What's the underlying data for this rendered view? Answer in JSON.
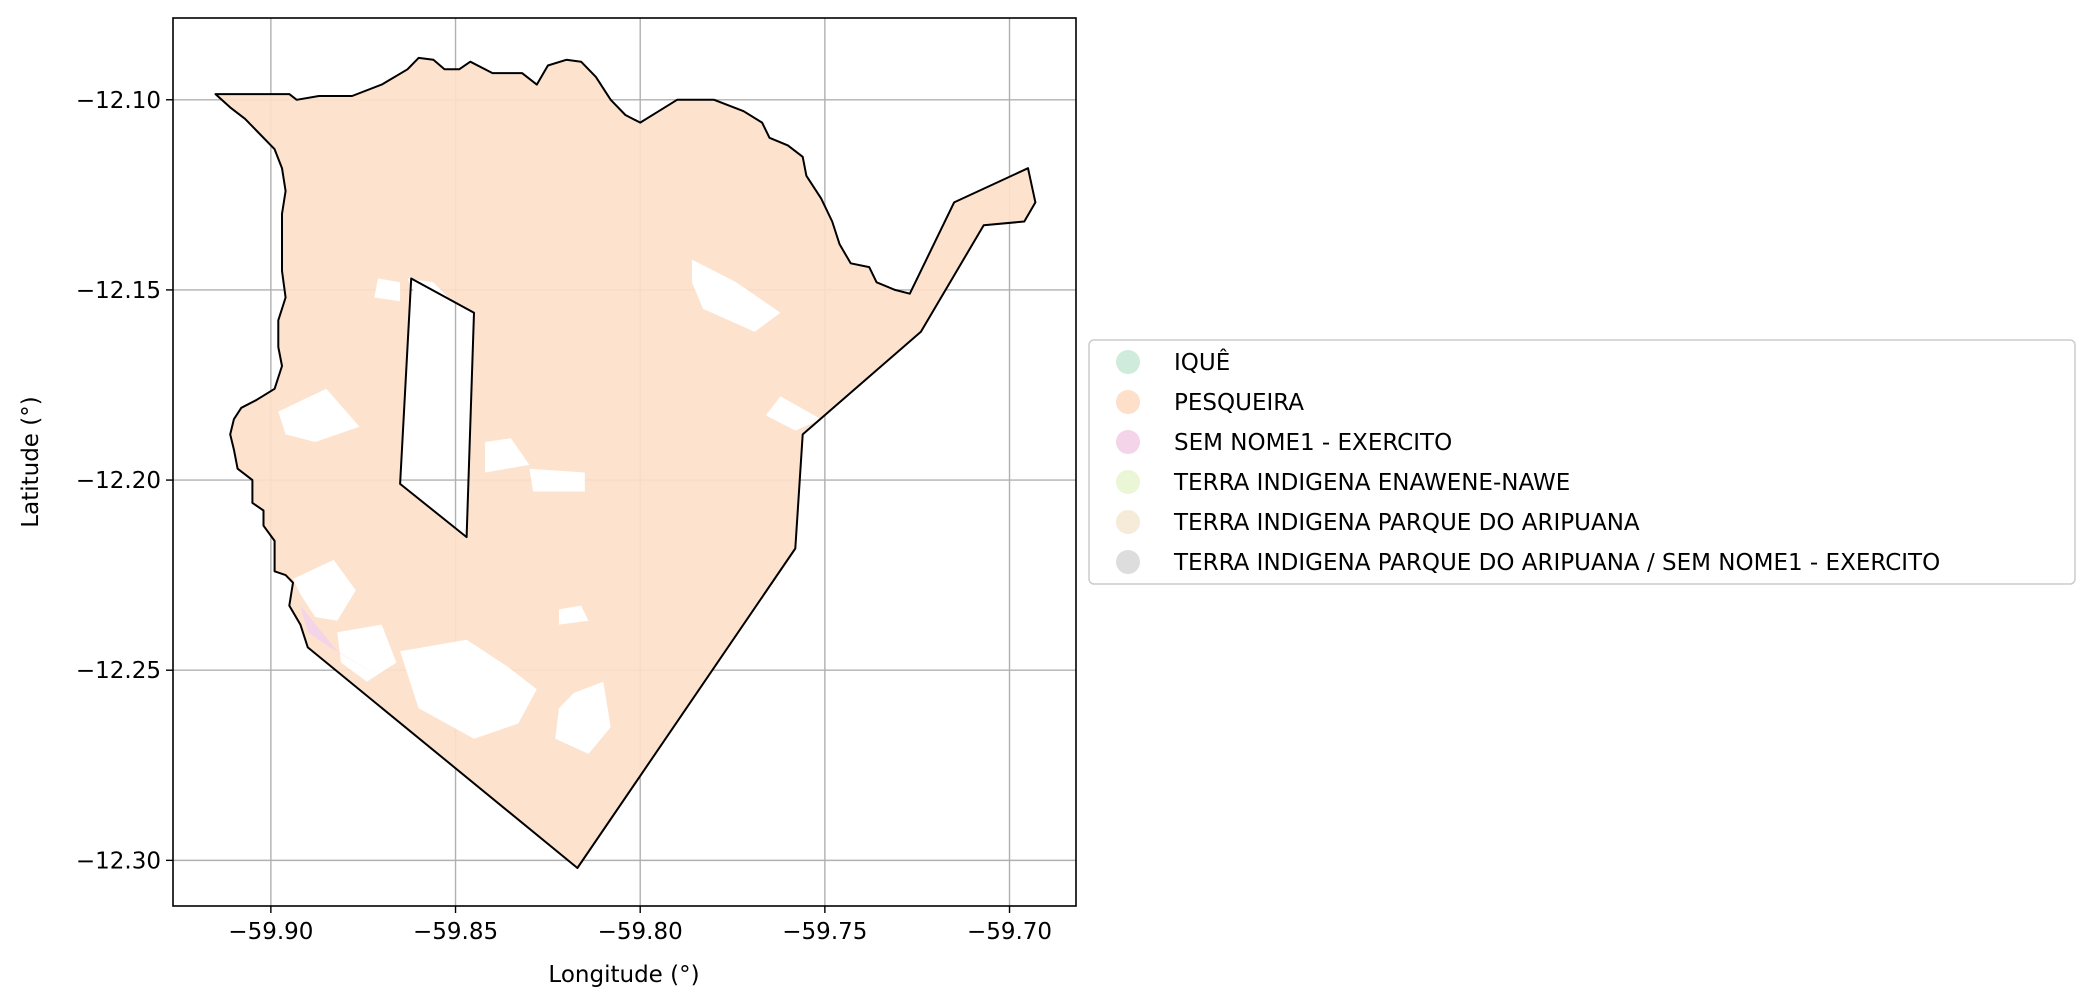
{
  "map": {
    "xlabel": "Longitude (°)",
    "ylabel": "Latitude (°)",
    "xlim": [
      -59.9265,
      -59.682
    ],
    "ylim": [
      -12.312,
      -12.0785
    ],
    "grid": true,
    "xticks": [
      {
        "value": -59.9,
        "label": "−59.90"
      },
      {
        "value": -59.85,
        "label": "−59.85"
      },
      {
        "value": -59.8,
        "label": "−59.80"
      },
      {
        "value": -59.75,
        "label": "−59.75"
      },
      {
        "value": -59.7,
        "label": "−59.70"
      }
    ],
    "yticks": [
      {
        "value": -12.1,
        "label": "−12.10"
      },
      {
        "value": -12.15,
        "label": "−12.15"
      },
      {
        "value": -12.2,
        "label": "−12.20"
      },
      {
        "value": -12.25,
        "label": "−12.25"
      },
      {
        "value": -12.3,
        "label": "−12.30"
      }
    ],
    "fill_color": "#fddfca",
    "boundary_color": "#000000",
    "outer_boundary": [
      [
        -59.915,
        -12.0985
      ],
      [
        -59.905,
        -12.0985
      ],
      [
        -59.895,
        -12.0985
      ],
      [
        -59.893,
        -12.1
      ],
      [
        -59.887,
        -12.099
      ],
      [
        -59.878,
        -12.099
      ],
      [
        -59.87,
        -12.096
      ],
      [
        -59.863,
        -12.092
      ],
      [
        -59.86,
        -12.089
      ],
      [
        -59.856,
        -12.0895
      ],
      [
        -59.853,
        -12.092
      ],
      [
        -59.849,
        -12.092
      ],
      [
        -59.846,
        -12.09
      ],
      [
        -59.84,
        -12.093
      ],
      [
        -59.832,
        -12.093
      ],
      [
        -59.828,
        -12.096
      ],
      [
        -59.825,
        -12.091
      ],
      [
        -59.82,
        -12.0895
      ],
      [
        -59.816,
        -12.09
      ],
      [
        -59.812,
        -12.094
      ],
      [
        -59.808,
        -12.1
      ],
      [
        -59.804,
        -12.104
      ],
      [
        -59.8,
        -12.106
      ],
      [
        -59.795,
        -12.103
      ],
      [
        -59.79,
        -12.1
      ],
      [
        -59.78,
        -12.1
      ],
      [
        -59.772,
        -12.103
      ],
      [
        -59.767,
        -12.106
      ],
      [
        -59.765,
        -12.11
      ],
      [
        -59.76,
        -12.112
      ],
      [
        -59.756,
        -12.115
      ],
      [
        -59.755,
        -12.12
      ],
      [
        -59.751,
        -12.126
      ],
      [
        -59.748,
        -12.132
      ],
      [
        -59.746,
        -12.138
      ],
      [
        -59.743,
        -12.143
      ],
      [
        -59.738,
        -12.144
      ],
      [
        -59.736,
        -12.148
      ],
      [
        -59.731,
        -12.15
      ],
      [
        -59.727,
        -12.151
      ],
      [
        -59.715,
        -12.127
      ],
      [
        -59.695,
        -12.118
      ],
      [
        -59.693,
        -12.127
      ],
      [
        -59.696,
        -12.132
      ],
      [
        -59.707,
        -12.133
      ],
      [
        -59.724,
        -12.161
      ],
      [
        -59.756,
        -12.188
      ],
      [
        -59.758,
        -12.218
      ],
      [
        -59.817,
        -12.302
      ],
      [
        -59.89,
        -12.244
      ],
      [
        -59.892,
        -12.238
      ],
      [
        -59.895,
        -12.233
      ],
      [
        -59.894,
        -12.227
      ],
      [
        -59.896,
        -12.225
      ],
      [
        -59.899,
        -12.224
      ],
      [
        -59.899,
        -12.216
      ],
      [
        -59.902,
        -12.212
      ],
      [
        -59.902,
        -12.208
      ],
      [
        -59.905,
        -12.206
      ],
      [
        -59.905,
        -12.2
      ],
      [
        -59.909,
        -12.197
      ],
      [
        -59.91,
        -12.192
      ],
      [
        -59.911,
        -12.188
      ],
      [
        -59.91,
        -12.184
      ],
      [
        -59.908,
        -12.181
      ],
      [
        -59.904,
        -12.179
      ],
      [
        -59.899,
        -12.176
      ],
      [
        -59.897,
        -12.17
      ],
      [
        -59.898,
        -12.165
      ],
      [
        -59.898,
        -12.158
      ],
      [
        -59.896,
        -12.152
      ],
      [
        -59.897,
        -12.145
      ],
      [
        -59.897,
        -12.138
      ],
      [
        -59.897,
        -12.13
      ],
      [
        -59.896,
        -12.124
      ],
      [
        -59.897,
        -12.118
      ],
      [
        -59.899,
        -12.113
      ],
      [
        -59.903,
        -12.109
      ],
      [
        -59.907,
        -12.105
      ],
      [
        -59.911,
        -12.102
      ],
      [
        -59.915,
        -12.0985
      ]
    ],
    "hole_polygon": [
      [
        -59.862,
        -12.147
      ],
      [
        -59.845,
        -12.156
      ],
      [
        -59.847,
        -12.215
      ],
      [
        -59.865,
        -12.201
      ]
    ],
    "white_patches": [
      [
        [
          -59.863,
          -12.147
        ],
        [
          -59.856,
          -12.148
        ],
        [
          -59.852,
          -12.152
        ],
        [
          -59.86,
          -12.153
        ]
      ],
      [
        [
          -59.871,
          -12.147
        ],
        [
          -59.865,
          -12.148
        ],
        [
          -59.865,
          -12.153
        ],
        [
          -59.872,
          -12.152
        ]
      ],
      [
        [
          -59.786,
          -12.142
        ],
        [
          -59.774,
          -12.148
        ],
        [
          -59.762,
          -12.156
        ],
        [
          -59.769,
          -12.161
        ],
        [
          -59.783,
          -12.155
        ],
        [
          -59.786,
          -12.148
        ]
      ],
      [
        [
          -59.762,
          -12.178
        ],
        [
          -59.751,
          -12.184
        ],
        [
          -59.758,
          -12.187
        ],
        [
          -59.766,
          -12.183
        ]
      ],
      [
        [
          -59.898,
          -12.182
        ],
        [
          -59.885,
          -12.176
        ],
        [
          -59.876,
          -12.186
        ],
        [
          -59.888,
          -12.19
        ],
        [
          -59.896,
          -12.188
        ]
      ],
      [
        [
          -59.842,
          -12.19
        ],
        [
          -59.835,
          -12.189
        ],
        [
          -59.83,
          -12.196
        ],
        [
          -59.842,
          -12.198
        ]
      ],
      [
        [
          -59.83,
          -12.197
        ],
        [
          -59.815,
          -12.198
        ],
        [
          -59.815,
          -12.203
        ],
        [
          -59.829,
          -12.203
        ]
      ],
      [
        [
          -59.894,
          -12.226
        ],
        [
          -59.883,
          -12.221
        ],
        [
          -59.877,
          -12.229
        ],
        [
          -59.882,
          -12.237
        ],
        [
          -59.888,
          -12.236
        ],
        [
          -59.892,
          -12.23
        ]
      ],
      [
        [
          -59.882,
          -12.24
        ],
        [
          -59.87,
          -12.238
        ],
        [
          -59.866,
          -12.248
        ],
        [
          -59.874,
          -12.253
        ],
        [
          -59.881,
          -12.248
        ]
      ],
      [
        [
          -59.865,
          -12.245
        ],
        [
          -59.847,
          -12.242
        ],
        [
          -59.836,
          -12.249
        ],
        [
          -59.828,
          -12.255
        ],
        [
          -59.833,
          -12.264
        ],
        [
          -59.845,
          -12.268
        ],
        [
          -59.86,
          -12.26
        ]
      ],
      [
        [
          -59.818,
          -12.256
        ],
        [
          -59.81,
          -12.253
        ],
        [
          -59.808,
          -12.265
        ],
        [
          -59.814,
          -12.272
        ],
        [
          -59.823,
          -12.268
        ],
        [
          -59.822,
          -12.26
        ]
      ],
      [
        [
          -59.822,
          -12.234
        ],
        [
          -59.816,
          -12.233
        ],
        [
          -59.814,
          -12.237
        ],
        [
          -59.822,
          -12.238
        ]
      ]
    ],
    "pink_patch": {
      "color": "#f4d4e8",
      "points": [
        [
          -59.892,
          -12.233
        ],
        [
          -59.882,
          -12.245
        ],
        [
          -59.87,
          -12.252
        ],
        [
          -59.884,
          -12.244
        ],
        [
          -59.89,
          -12.24
        ]
      ]
    }
  },
  "legend": {
    "items": [
      {
        "label": "IQUÊ",
        "color": "#cfebdc"
      },
      {
        "label": "PESQUEIRA",
        "color": "#fddfca"
      },
      {
        "label": "SEM NOME1 - EXERCITO",
        "color": "#f4d4e8"
      },
      {
        "label": "TERRA INDIGENA ENAWENE-NAWE",
        "color": "#eaf6d6"
      },
      {
        "label": "TERRA INDIGENA PARQUE DO ARIPUANA",
        "color": "#f6ead8"
      },
      {
        "label": "TERRA INDIGENA PARQUE DO ARIPUANA / SEM NOME1 - EXERCITO",
        "color": "#dddddd"
      }
    ]
  }
}
